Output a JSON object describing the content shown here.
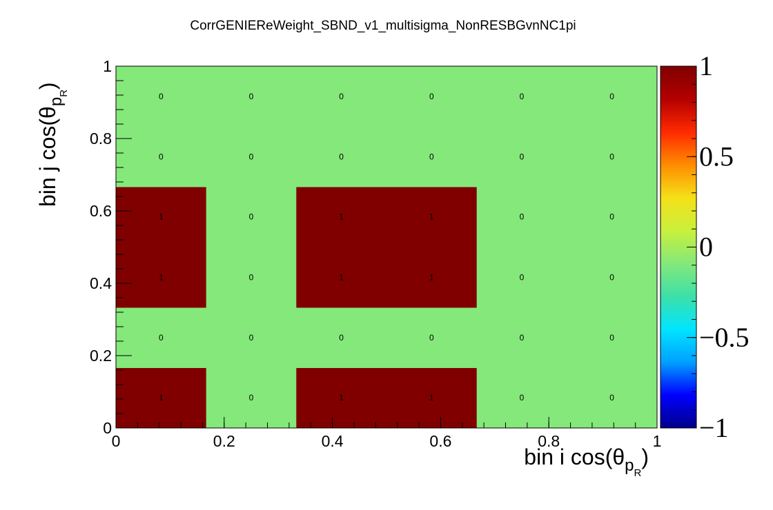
{
  "chart_data": {
    "type": "heatmap",
    "title": "CorrGENIEReWeight_SBND_v1_multisigma_NonRESBGvnNC1pi",
    "xlabel": {
      "main": "bin i cos(θ",
      "sub": "p",
      "subsub": "R",
      "close": ")"
    },
    "ylabel": {
      "main": "bin j cos(θ",
      "sub": "p",
      "subsub": "R",
      "close": ")"
    },
    "xlim": [
      0,
      1
    ],
    "ylim": [
      0,
      1
    ],
    "zlim": [
      -1,
      1
    ],
    "x_bin_edges": [
      0,
      0.1667,
      0.3333,
      0.5,
      0.6667,
      0.8333,
      1
    ],
    "y_bin_edges": [
      0,
      0.1667,
      0.3333,
      0.5,
      0.6667,
      0.8333,
      1
    ],
    "x_ticks": [
      "0",
      "0.2",
      "0.4",
      "0.6",
      "0.8",
      "1"
    ],
    "y_ticks": [
      "0",
      "0.2",
      "0.4",
      "0.6",
      "0.8",
      "1"
    ],
    "colorbar_ticks": [
      "1",
      "0.5",
      "0",
      "−0.5",
      "−1"
    ],
    "values": [
      [
        1,
        0,
        1,
        1,
        0,
        0
      ],
      [
        0,
        0,
        0,
        0,
        0,
        0
      ],
      [
        1,
        0,
        1,
        1,
        0,
        0
      ],
      [
        1,
        0,
        1,
        1,
        0,
        0
      ],
      [
        0,
        0,
        0,
        0,
        0,
        0
      ],
      [
        0,
        0,
        0,
        0,
        0,
        0
      ]
    ],
    "value_labels": [
      [
        "1",
        "0",
        "1",
        "1",
        "0",
        "0"
      ],
      [
        "0",
        "0",
        "0",
        "0",
        "0",
        "0"
      ],
      [
        "1",
        "0",
        "1",
        "1",
        "0",
        "0"
      ],
      [
        "1",
        "0",
        "1",
        "1",
        "0",
        "0"
      ],
      [
        "0",
        "0",
        "0",
        "0",
        "0",
        "0"
      ],
      [
        "0",
        "0",
        "0",
        "0",
        "0",
        "0"
      ]
    ],
    "colormap": [
      "#00008b",
      "#0000ff",
      "#00a0ff",
      "#00e5ff",
      "#3de0a8",
      "#84e87a",
      "#c8f03c",
      "#f5e018",
      "#ff8c00",
      "#ff2a00",
      "#b30000",
      "#800000"
    ],
    "colors": {
      "zero": "#84e87a",
      "one": "#800000"
    },
    "grid": false
  }
}
